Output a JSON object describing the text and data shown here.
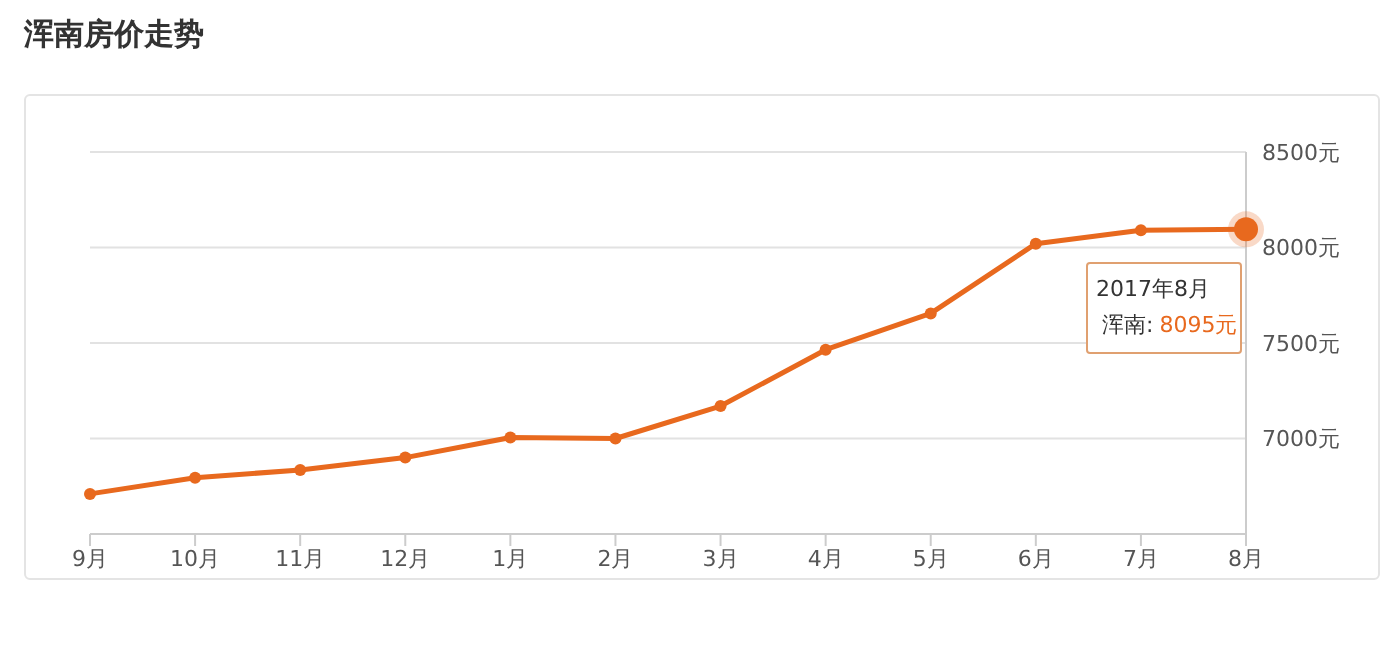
{
  "chart_data": {
    "type": "line",
    "title": "浑南房价走势",
    "categories": [
      "9月",
      "10月",
      "11月",
      "12月",
      "1月",
      "2月",
      "3月",
      "4月",
      "5月",
      "6月",
      "7月",
      "8月"
    ],
    "series": [
      {
        "color": "#e8691e",
        "values": [
          6710,
          6795,
          6835,
          6900,
          7005,
          7000,
          7170,
          7465,
          7655,
          8020,
          8090,
          8095
        ],
        "value_labels": [
          null,
          null,
          null,
          null,
          null,
          null,
          null,
          null,
          null,
          null,
          null,
          "8095元"
        ]
      }
    ],
    "ylim": [
      6500,
      8500
    ],
    "yticks": [
      {
        "value": 7000,
        "label": "7000元"
      },
      {
        "value": 7500,
        "label": "7500元"
      },
      {
        "value": 8000,
        "label": "8000元"
      },
      {
        "value": 8500,
        "label": "8500元"
      }
    ],
    "grid": "y",
    "marker": "circle",
    "line_style": "solid",
    "legend": false,
    "annotations": [
      {
        "text": "2017年8月",
        "x": "8月",
        "y": 8095
      },
      "浑南:"
    ]
  }
}
